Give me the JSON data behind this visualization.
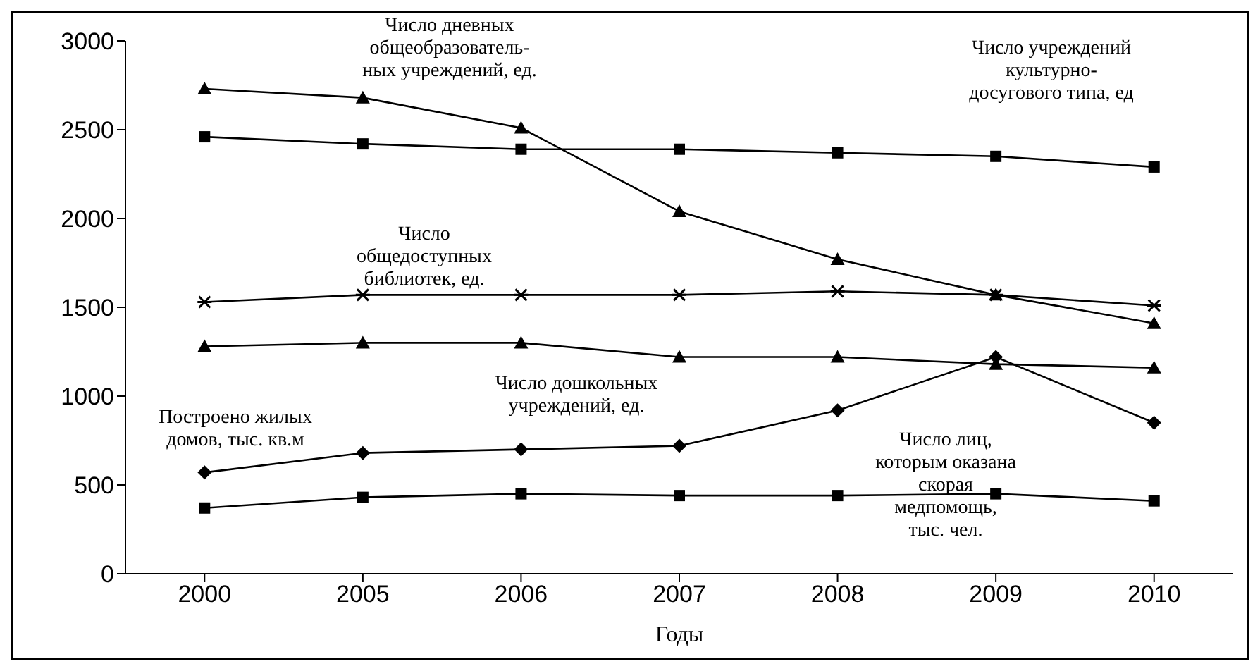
{
  "chart_data": {
    "type": "line",
    "xlabel": "Годы",
    "categories": [
      "2000",
      "2005",
      "2006",
      "2007",
      "2008",
      "2009",
      "2010"
    ],
    "ylim": [
      0,
      3000
    ],
    "yticks": [
      0,
      500,
      1000,
      1500,
      2000,
      2500,
      3000
    ],
    "series": [
      {
        "name": "Число дневных\nобщеобразователь-\nных учреждений, ед.",
        "color": "#000000",
        "marker": "triangle",
        "values": [
          2730,
          2680,
          2510,
          2040,
          1770,
          1570,
          1410
        ]
      },
      {
        "name": "Число учреждений\nкультурно-\nдосугового типа, ед",
        "color": "#000000",
        "marker": "square",
        "values": [
          2460,
          2420,
          2390,
          2390,
          2370,
          2350,
          2290
        ]
      },
      {
        "name": "Число\nобщедоступных\nбиблиотек, ед.",
        "color": "#000000",
        "marker": "cross",
        "values": [
          1530,
          1570,
          1570,
          1570,
          1590,
          1570,
          1510
        ]
      },
      {
        "name": "Число дошкольных\nучреждений, ед.",
        "color": "#000000",
        "marker": "triangle",
        "values": [
          1280,
          1300,
          1300,
          1220,
          1220,
          1180,
          1160
        ]
      },
      {
        "name": "Построено жилых\nдомов, тыс. кв.м",
        "color": "#000000",
        "marker": "diamond",
        "values": [
          570,
          680,
          700,
          720,
          920,
          1220,
          850
        ]
      },
      {
        "name": "Число лиц,\nкоторым оказана\nскорая\nмедпомощь,\nтыс. чел.",
        "color": "#000000",
        "marker": "square",
        "values": [
          370,
          430,
          450,
          440,
          440,
          450,
          410
        ]
      }
    ]
  }
}
